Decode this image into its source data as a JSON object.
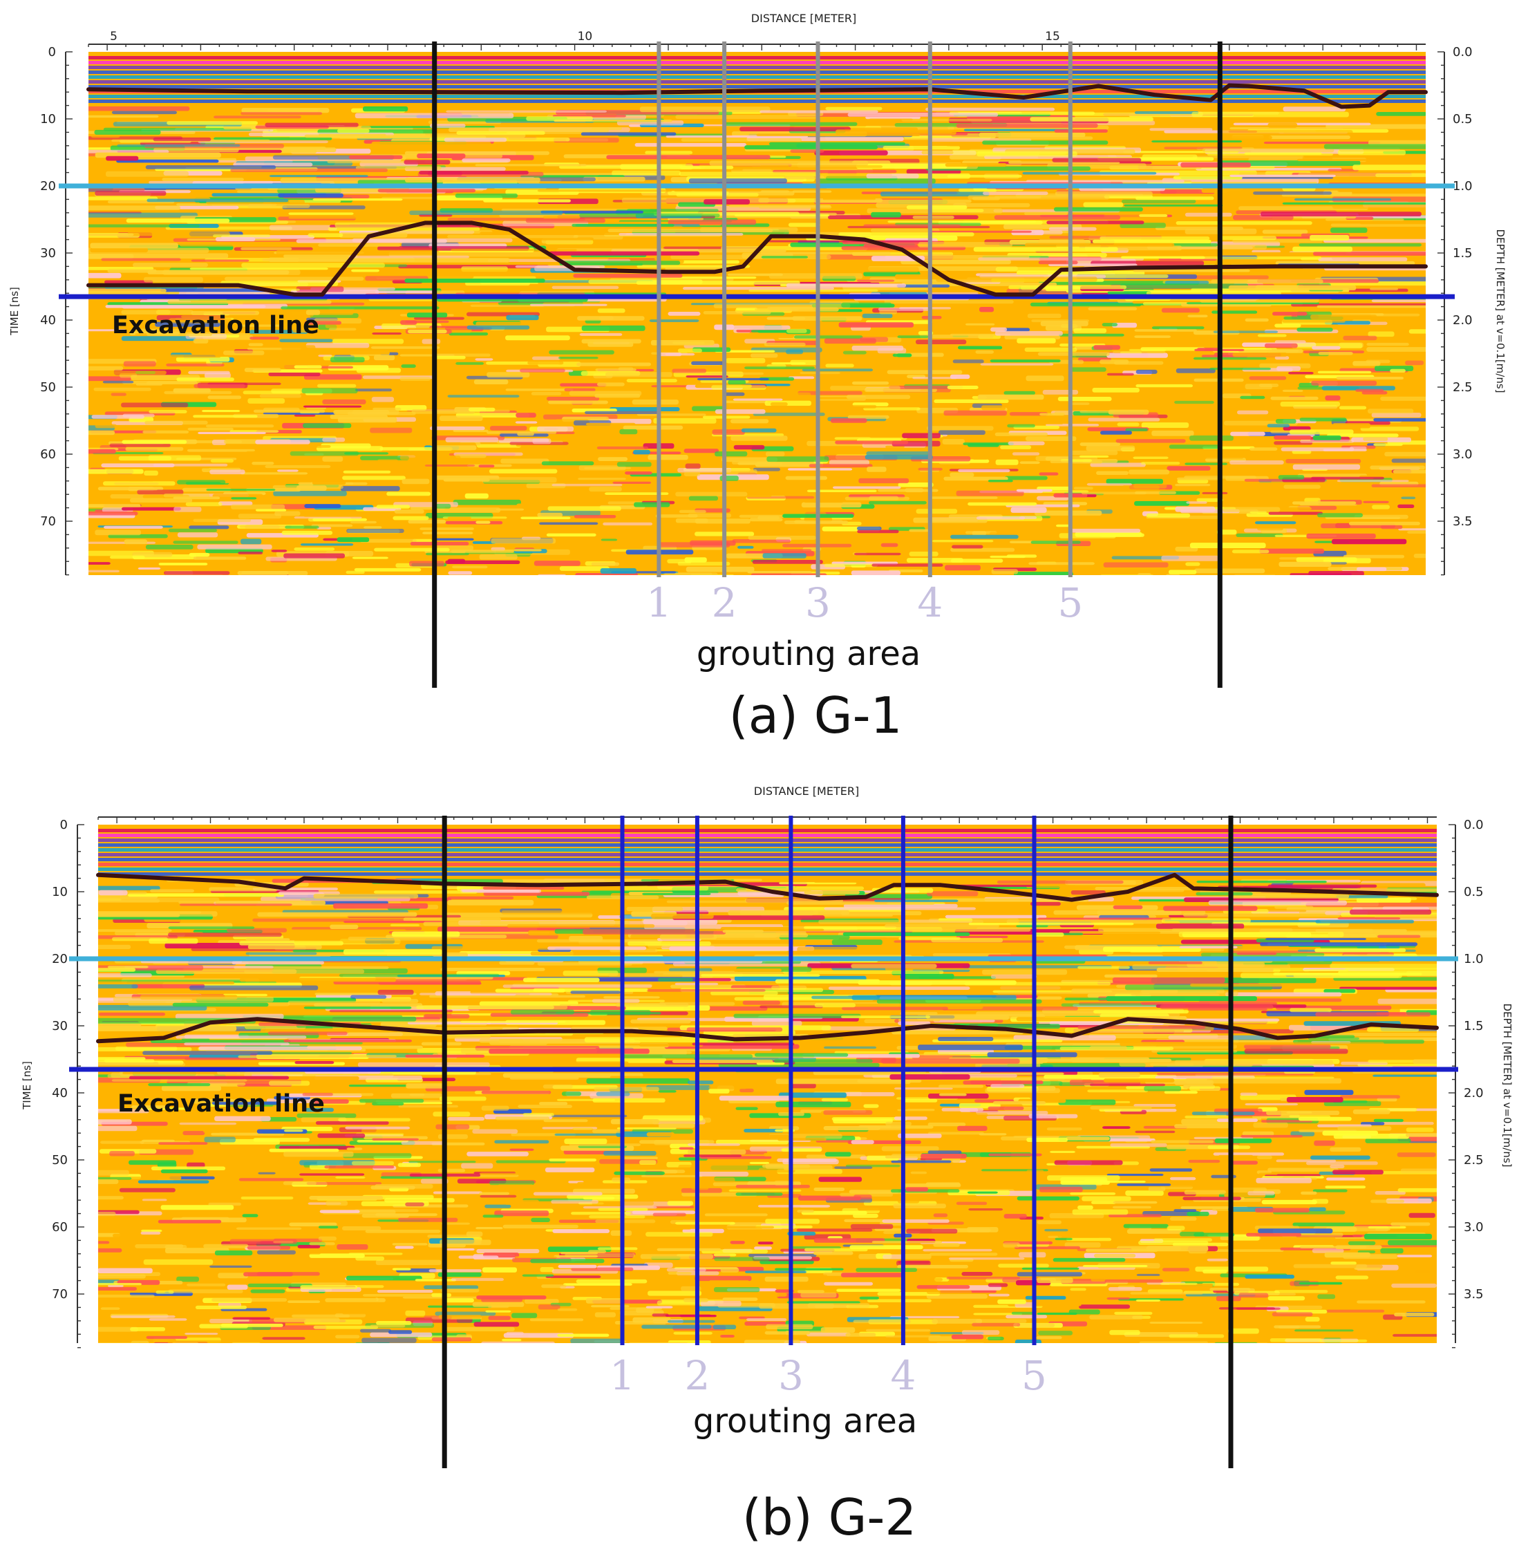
{
  "chart_data": [
    {
      "id": "G-1",
      "type": "heatmap",
      "caption": "(a) G-1",
      "xlabel": "DISTANCE [METER]",
      "ylabel": "TIME [ns]",
      "y2label": "DEPTH [METER] at v=0.1[m/ns]",
      "xlim": [
        4.8,
        19.1
      ],
      "ylim": [
        0,
        78
      ],
      "xticks": [
        {
          "value": 5,
          "label": "5"
        },
        {
          "value": 10,
          "label": "10"
        },
        {
          "value": 15,
          "label": "15"
        }
      ],
      "yticks": [
        0,
        10,
        20,
        30,
        40,
        50,
        60,
        70
      ],
      "ytick_labels": [
        "0",
        "10",
        "20",
        "30",
        "40",
        "50",
        "60",
        "70"
      ],
      "y2ticks": [
        {
          "value": 0,
          "label": "0.0"
        },
        {
          "value": 10,
          "label": "0.5"
        },
        {
          "value": 20,
          "label": "1.0"
        },
        {
          "value": 30,
          "label": "1.5"
        },
        {
          "value": 40,
          "label": "2.0"
        },
        {
          "value": 50,
          "label": "2.5"
        },
        {
          "value": 60,
          "label": "3.0"
        },
        {
          "value": 70,
          "label": "3.5"
        }
      ],
      "surface_line": {
        "x": [
          4.8,
          6.5,
          8.5,
          10.5,
          12.0,
          13.8,
          14.8,
          15.6,
          16.2,
          16.8,
          17.0,
          17.2,
          17.8,
          18.2,
          18.5,
          18.7,
          19.1
        ],
        "y": [
          5.6,
          5.9,
          6.0,
          6.1,
          5.8,
          5.6,
          6.8,
          5.1,
          6.4,
          7.2,
          5.0,
          5.1,
          5.8,
          8.2,
          8.0,
          6.0,
          6.0
        ]
      },
      "interface_line": {
        "x": [
          4.8,
          6.4,
          7.0,
          7.3,
          7.8,
          8.4,
          8.9,
          9.3,
          10.0,
          11.0,
          11.5,
          11.8,
          12.1,
          12.6,
          13.1,
          13.5,
          14.0,
          14.5,
          14.9,
          15.2,
          16.0,
          17.5,
          19.1
        ],
        "y": [
          34.8,
          34.8,
          36.2,
          36.2,
          27.5,
          25.5,
          25.5,
          26.5,
          32.5,
          32.8,
          32.8,
          32.0,
          27.5,
          27.5,
          28.0,
          29.5,
          34.0,
          36.2,
          36.2,
          32.5,
          32.2,
          32.0,
          32.0
        ]
      },
      "horizontal_lines": [
        {
          "label": "",
          "y": 20,
          "color": "#3fb0d9"
        },
        {
          "label": "Excavation line",
          "y": 36.5,
          "color": "#1a1fc9"
        }
      ],
      "grouting_area": {
        "label": "grouting area",
        "x_start": 8.5,
        "x_end": 16.9
      },
      "grout_holes": [
        {
          "label": "1",
          "x": 10.9
        },
        {
          "label": "2",
          "x": 11.6
        },
        {
          "label": "3",
          "x": 12.6
        },
        {
          "label": "4",
          "x": 13.8
        },
        {
          "label": "5",
          "x": 15.3
        }
      ],
      "grout_hole_color": "#8e8e8e",
      "colormap": [
        "#7a3fb7",
        "#2c5bd7",
        "#19a3c9",
        "#25d045",
        "#b7e43c",
        "#ffff33",
        "#ffd233",
        "#ffb400",
        "#ffa020",
        "#ff5050",
        "#e0105a",
        "#ff33cc"
      ]
    },
    {
      "id": "G-2",
      "type": "heatmap",
      "caption": "(b) G-2",
      "xlabel": "DISTANCE [METER]",
      "ylabel": "TIME [ns]",
      "y2label": "DEPTH [METER] at v=0.1[m/ns]",
      "xlim": [
        4.8,
        19.1
      ],
      "ylim": [
        0,
        78
      ],
      "xticks": [],
      "yticks": [
        0,
        10,
        20,
        30,
        40,
        50,
        60,
        70
      ],
      "ytick_labels": [
        "0",
        "10",
        "20",
        "30",
        "40",
        "50",
        "60",
        "70"
      ],
      "y2ticks": [
        {
          "value": 0,
          "label": "0.0"
        },
        {
          "value": 10,
          "label": "0.5"
        },
        {
          "value": 20,
          "label": "1.0"
        },
        {
          "value": 30,
          "label": "1.5"
        },
        {
          "value": 40,
          "label": "2.0"
        },
        {
          "value": 50,
          "label": "2.5"
        },
        {
          "value": 60,
          "label": "3.0"
        },
        {
          "value": 70,
          "label": "3.5"
        }
      ],
      "surface_line": {
        "x": [
          4.8,
          6.3,
          6.8,
          7.0,
          8.5,
          9.5,
          10.7,
          11.5,
          12.0,
          12.5,
          13.0,
          13.3,
          13.8,
          14.5,
          15.2,
          15.8,
          16.3,
          16.5,
          17.5,
          19.1
        ],
        "y": [
          7.5,
          8.5,
          9.5,
          8.0,
          8.8,
          9.0,
          8.8,
          8.5,
          10.0,
          11.0,
          10.8,
          9.0,
          9.0,
          10.0,
          11.2,
          10.0,
          7.5,
          9.5,
          9.8,
          10.5
        ]
      },
      "interface_line": {
        "x": [
          4.8,
          5.5,
          6.0,
          6.5,
          7.5,
          8.5,
          9.5,
          10.5,
          11.0,
          11.6,
          12.3,
          13.0,
          13.7,
          14.5,
          15.2,
          15.8,
          16.5,
          17.0,
          17.4,
          17.8,
          18.4,
          19.1
        ],
        "y": [
          32.3,
          31.8,
          29.5,
          29.0,
          30.0,
          31.0,
          30.8,
          30.8,
          31.2,
          32.0,
          31.8,
          31.0,
          30.0,
          30.5,
          31.5,
          29.0,
          29.5,
          30.5,
          31.8,
          31.5,
          29.8,
          30.3
        ]
      },
      "horizontal_lines": [
        {
          "label": "",
          "y": 20,
          "color": "#3fb0d9"
        },
        {
          "label": "Excavation line",
          "y": 36.5,
          "color": "#1a1fc9"
        }
      ],
      "grouting_area": {
        "label": "grouting area",
        "x_start": 8.5,
        "x_end": 16.9
      },
      "grout_holes": [
        {
          "label": "1",
          "x": 10.4
        },
        {
          "label": "2",
          "x": 11.2
        },
        {
          "label": "3",
          "x": 12.2
        },
        {
          "label": "4",
          "x": 13.4
        },
        {
          "label": "5",
          "x": 14.8
        }
      ],
      "grout_hole_color": "#1a1fc9",
      "colormap": [
        "#7a3fb7",
        "#2c5bd7",
        "#19a3c9",
        "#25d045",
        "#b7e43c",
        "#ffff33",
        "#ffd233",
        "#ffb400",
        "#ffa020",
        "#ff5050",
        "#e0105a",
        "#ff33cc"
      ]
    }
  ]
}
